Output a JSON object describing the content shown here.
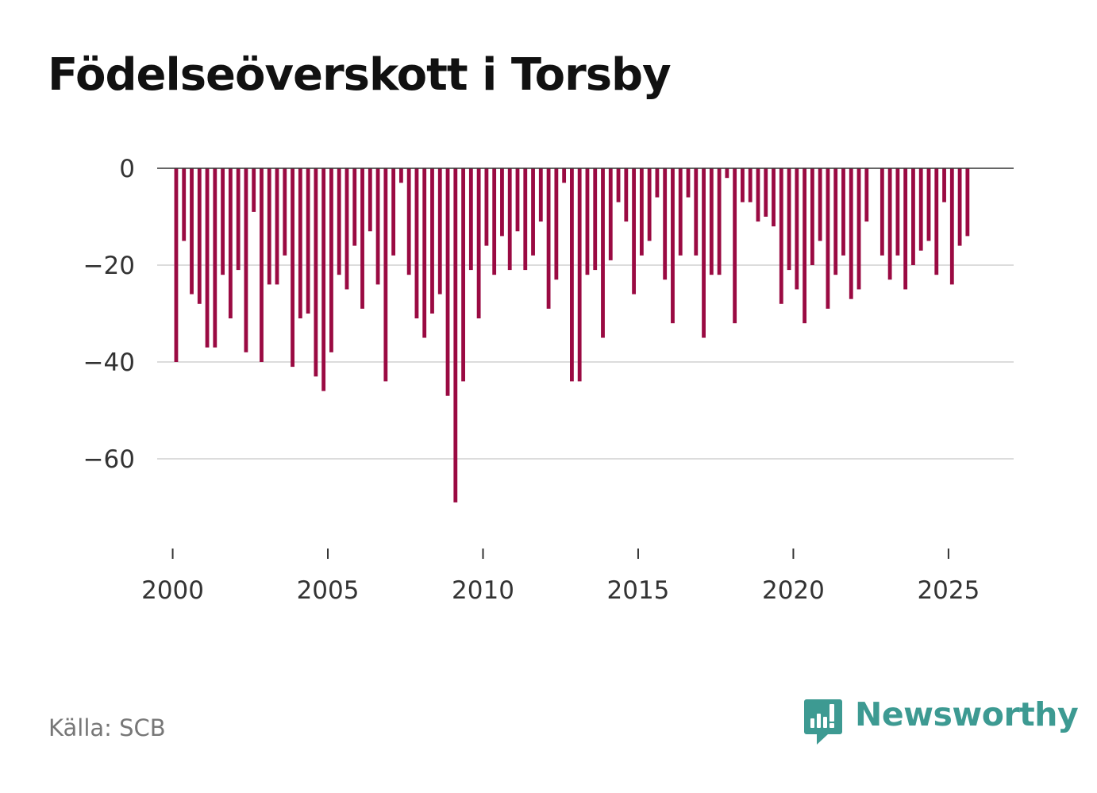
{
  "title": "Födelseöverskott i Torsby",
  "source": "Källa: SCB",
  "brand": {
    "name": "Newsworthy",
    "icon": "newsworthy-logo-icon",
    "color": "#3d9a92"
  },
  "chart_data": {
    "type": "bar",
    "title": "Födelseöverskott i Torsby",
    "xlabel": "",
    "ylabel": "",
    "bar_color": "#9a0a42",
    "grid": true,
    "legend": "none",
    "ylim": [
      -79,
      0
    ],
    "yticks": [
      0,
      -20,
      -40,
      -60
    ],
    "ytick_labels": [
      "0",
      "−20",
      "−40",
      "−60"
    ],
    "xlim": [
      1999.5,
      2027.1
    ],
    "xticks": [
      2000,
      2005,
      2010,
      2015,
      2020,
      2025
    ],
    "xtick_labels": [
      "2000",
      "2005",
      "2010",
      "2015",
      "2020",
      "2025"
    ],
    "frequency": "quarterly",
    "start": "2000 Q1",
    "values": [
      -40,
      -15,
      -26,
      -28,
      -37,
      -37,
      -22,
      -31,
      -21,
      -38,
      -9,
      -40,
      -24,
      -24,
      -18,
      -41,
      -31,
      -30,
      -43,
      -46,
      -38,
      -22,
      -25,
      -16,
      -29,
      -13,
      -24,
      -44,
      -18,
      -3,
      -22,
      -31,
      -35,
      -30,
      -26,
      -47,
      -69,
      -44,
      -21,
      -31,
      -16,
      -22,
      -14,
      -21,
      -13,
      -21,
      -18,
      -11,
      -29,
      -23,
      -3,
      -44,
      -44,
      -22,
      -21,
      -35,
      -19,
      -7,
      -11,
      -26,
      -18,
      -15,
      -6,
      -23,
      -32,
      -18,
      -6,
      -18,
      -35,
      -22,
      -22,
      -2,
      -32,
      -7,
      -7,
      -11,
      -10,
      -12,
      -28,
      -21,
      -25,
      -32,
      -20,
      -15,
      -29,
      -22,
      -18,
      -27,
      -25,
      -11,
      0,
      -18,
      -23,
      -18,
      -25,
      -20,
      -17,
      -15,
      -22,
      -7,
      -24,
      -16,
      -14
    ]
  }
}
